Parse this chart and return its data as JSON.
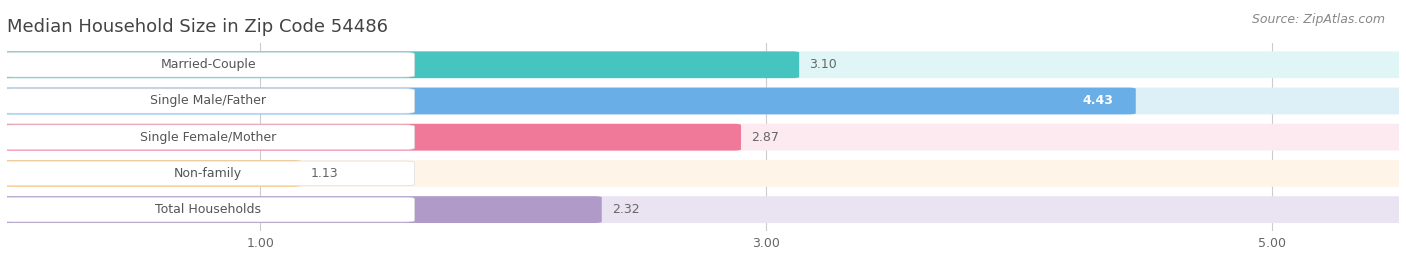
{
  "title": "Median Household Size in Zip Code 54486",
  "source": "Source: ZipAtlas.com",
  "categories": [
    "Married-Couple",
    "Single Male/Father",
    "Single Female/Mother",
    "Non-family",
    "Total Households"
  ],
  "values": [
    3.1,
    4.43,
    2.87,
    1.13,
    2.32
  ],
  "bar_colors": [
    "#45C4C0",
    "#6AAEE8",
    "#F07898",
    "#F5C888",
    "#B09AC8"
  ],
  "bar_bg_colors": [
    "#E0F6F6",
    "#DDF0F8",
    "#FDEAF0",
    "#FEF5E8",
    "#EAE4F2"
  ],
  "row_bg_color": "#EBEBEB",
  "xlim_min": 0.0,
  "xlim_max": 5.5,
  "xticks": [
    1.0,
    3.0,
    5.0
  ],
  "xtick_labels": [
    "1.00",
    "3.00",
    "5.00"
  ],
  "title_fontsize": 13,
  "source_fontsize": 9,
  "label_fontsize": 9,
  "value_fontsize": 9,
  "background_color": "#FFFFFF",
  "grid_color": "#CCCCCC",
  "label_text_color": "#555555",
  "value_color_inside": "#FFFFFF",
  "value_color_outside": "#666666"
}
